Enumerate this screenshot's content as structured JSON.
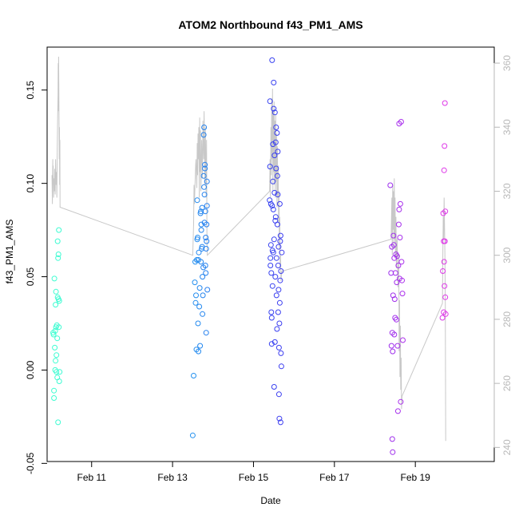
{
  "chart_data": {
    "type": "scatter",
    "title": "ATOM2 Northbound f43_PM1_AMS",
    "xlabel": "Date",
    "ylabel": "f43_PM1_AMS",
    "x_ticks": [
      {
        "label": "Feb 11",
        "day": 11
      },
      {
        "label": "Feb 13",
        "day": 13
      },
      {
        "label": "Feb 15",
        "day": 15
      },
      {
        "label": "Feb 17",
        "day": 17
      },
      {
        "label": "Feb 19",
        "day": 19
      }
    ],
    "y_ticks": [
      "-0.05",
      "0.00",
      "0.05",
      "0.10",
      "0.15"
    ],
    "y2_ticks": [
      "240",
      "260",
      "280",
      "300",
      "320",
      "340",
      "360"
    ],
    "xlim": [
      9.9,
      20.95
    ],
    "ylim": [
      -0.049,
      0.173
    ],
    "y2lim": [
      235.6,
      365.0
    ],
    "grid": false,
    "legend": "none",
    "colors": {
      "point_gradient": [
        "#40ffd0",
        "#20c8ee",
        "#2848f0",
        "#6a28f0",
        "#e238e8"
      ],
      "secondary_line": "#c8c8c8",
      "secondary_axis": "#b8b8b8"
    },
    "points": [
      [
        10.05,
        0.02
      ],
      [
        10.06,
        0.019
      ],
      [
        10.07,
        -0.011
      ],
      [
        10.07,
        -0.015
      ],
      [
        10.08,
        0.049
      ],
      [
        10.09,
        0.012
      ],
      [
        10.1,
        0.0
      ],
      [
        10.1,
        0.021
      ],
      [
        10.11,
        0.005
      ],
      [
        10.11,
        0.035
      ],
      [
        10.12,
        0.023
      ],
      [
        10.12,
        0.042
      ],
      [
        10.13,
        0.008
      ],
      [
        10.13,
        -0.001
      ],
      [
        10.14,
        0.024
      ],
      [
        10.15,
        -0.004
      ],
      [
        10.15,
        0.017
      ],
      [
        10.16,
        0.039
      ],
      [
        10.16,
        0.069
      ],
      [
        10.17,
        0.06
      ],
      [
        10.17,
        -0.028
      ],
      [
        10.18,
        0.062
      ],
      [
        10.18,
        0.038
      ],
      [
        10.19,
        0.023
      ],
      [
        10.19,
        0.075
      ],
      [
        10.2,
        -0.006
      ],
      [
        10.2,
        0.037
      ],
      [
        10.21,
        -0.001
      ],
      [
        13.5,
        -0.035
      ],
      [
        13.52,
        -0.003
      ],
      [
        13.55,
        0.047
      ],
      [
        13.56,
        0.058
      ],
      [
        13.57,
        0.036
      ],
      [
        13.58,
        0.04
      ],
      [
        13.59,
        0.011
      ],
      [
        13.6,
        0.059
      ],
      [
        13.61,
        0.07
      ],
      [
        13.61,
        0.091
      ],
      [
        13.62,
        0.071
      ],
      [
        13.63,
        0.025
      ],
      [
        13.64,
        0.01
      ],
      [
        13.64,
        0.059
      ],
      [
        13.65,
        0.063
      ],
      [
        13.66,
        0.034
      ],
      [
        13.67,
        0.044
      ],
      [
        13.68,
        0.013
      ],
      [
        13.69,
        0.084
      ],
      [
        13.7,
        0.085
      ],
      [
        13.7,
        0.058
      ],
      [
        13.71,
        0.075
      ],
      [
        13.71,
        0.078
      ],
      [
        13.72,
        0.065
      ],
      [
        13.73,
        0.066
      ],
      [
        13.73,
        0.087
      ],
      [
        13.74,
        0.05
      ],
      [
        13.74,
        0.03
      ],
      [
        13.75,
        0.04
      ],
      [
        13.76,
        0.055
      ],
      [
        13.77,
        0.104
      ],
      [
        13.77,
        0.126
      ],
      [
        13.78,
        0.13
      ],
      [
        13.78,
        0.098
      ],
      [
        13.79,
        0.094
      ],
      [
        13.79,
        0.079
      ],
      [
        13.8,
        0.11
      ],
      [
        13.8,
        0.108
      ],
      [
        13.81,
        0.056
      ],
      [
        13.81,
        0.085
      ],
      [
        13.82,
        0.071
      ],
      [
        13.82,
        0.052
      ],
      [
        13.83,
        0.02
      ],
      [
        13.83,
        0.065
      ],
      [
        13.84,
        0.069
      ],
      [
        13.84,
        0.078
      ],
      [
        13.85,
        0.088
      ],
      [
        13.85,
        0.101
      ],
      [
        13.86,
        0.043
      ],
      [
        15.4,
        0.091
      ],
      [
        15.41,
        0.109
      ],
      [
        15.41,
        0.144
      ],
      [
        15.42,
        0.056
      ],
      [
        15.42,
        0.06
      ],
      [
        15.43,
        0.089
      ],
      [
        15.43,
        0.067
      ],
      [
        15.44,
        0.031
      ],
      [
        15.44,
        0.052
      ],
      [
        15.45,
        0.028
      ],
      [
        15.45,
        0.014
      ],
      [
        15.46,
        0.088
      ],
      [
        15.46,
        0.166
      ],
      [
        15.47,
        0.045
      ],
      [
        15.47,
        0.064
      ],
      [
        15.48,
        0.101
      ],
      [
        15.48,
        0.121
      ],
      [
        15.49,
        0.086
      ],
      [
        15.49,
        0.063
      ],
      [
        15.5,
        0.14
      ],
      [
        15.5,
        0.154
      ],
      [
        15.51,
        -0.009
      ],
      [
        15.51,
        0.07
      ],
      [
        15.52,
        0.115
      ],
      [
        15.52,
        0.095
      ],
      [
        15.53,
        0.138
      ],
      [
        15.53,
        0.015
      ],
      [
        15.54,
        0.05
      ],
      [
        15.54,
        0.08
      ],
      [
        15.55,
        0.122
      ],
      [
        15.55,
        0.082
      ],
      [
        15.56,
        0.108
      ],
      [
        15.56,
        0.13
      ],
      [
        15.57,
        0.06
      ],
      [
        15.57,
        0.04
      ],
      [
        15.58,
        0.022
      ],
      [
        15.58,
        0.127
      ],
      [
        15.59,
        0.104
      ],
      [
        15.59,
        0.078
      ],
      [
        15.6,
        0.094
      ],
      [
        15.6,
        0.117
      ],
      [
        15.61,
        0.056
      ],
      [
        15.61,
        0.031
      ],
      [
        15.62,
        0.066
      ],
      [
        15.62,
        0.043
      ],
      [
        15.63,
        0.012
      ],
      [
        15.63,
        -0.013
      ],
      [
        15.64,
        -0.026
      ],
      [
        15.64,
        0.025
      ],
      [
        15.65,
        0.036
      ],
      [
        15.65,
        0.089
      ],
      [
        15.66,
        0.069
      ],
      [
        15.66,
        0.048
      ],
      [
        15.67,
        -0.028
      ],
      [
        15.67,
        0.072
      ],
      [
        15.68,
        0.053
      ],
      [
        15.68,
        0.009
      ],
      [
        15.69,
        0.002
      ],
      [
        15.7,
        0.063
      ],
      [
        18.38,
        0.099
      ],
      [
        18.4,
        0.052
      ],
      [
        18.41,
        0.013
      ],
      [
        18.42,
        0.066
      ],
      [
        18.43,
        0.02
      ],
      [
        18.43,
        -0.037
      ],
      [
        18.44,
        -0.044
      ],
      [
        18.44,
        0.01
      ],
      [
        18.45,
        0.04
      ],
      [
        18.46,
        0.072
      ],
      [
        18.47,
        0.067
      ],
      [
        18.48,
        0.019
      ],
      [
        18.48,
        0.06
      ],
      [
        18.49,
        0.038
      ],
      [
        18.5,
        0.028
      ],
      [
        18.51,
        0.052
      ],
      [
        18.52,
        0.062
      ],
      [
        18.53,
        0.027
      ],
      [
        18.54,
        0.047
      ],
      [
        18.55,
        0.061
      ],
      [
        18.56,
        0.013
      ],
      [
        18.57,
        -0.022
      ],
      [
        18.58,
        0.056
      ],
      [
        18.59,
        0.078
      ],
      [
        18.6,
        0.086
      ],
      [
        18.6,
        0.132
      ],
      [
        18.61,
        0.049
      ],
      [
        18.62,
        0.071
      ],
      [
        18.63,
        0.089
      ],
      [
        18.64,
        -0.017
      ],
      [
        18.65,
        0.133
      ],
      [
        18.66,
        0.058
      ],
      [
        18.67,
        0.048
      ],
      [
        18.68,
        0.041
      ],
      [
        18.69,
        0.016
      ],
      [
        19.67,
        0.028
      ],
      [
        19.68,
        0.053
      ],
      [
        19.69,
        0.084
      ],
      [
        19.7,
        0.069
      ],
      [
        19.7,
        0.031
      ],
      [
        19.71,
        0.107
      ],
      [
        19.71,
        0.058
      ],
      [
        19.72,
        0.12
      ],
      [
        19.72,
        0.045
      ],
      [
        19.73,
        0.143
      ],
      [
        19.73,
        0.069
      ],
      [
        19.74,
        0.085
      ],
      [
        19.74,
        0.039
      ],
      [
        19.75,
        0.03
      ]
    ],
    "secondary_line": [
      [
        10.02,
        325
      ],
      [
        10.03,
        316
      ],
      [
        10.04,
        330
      ],
      [
        10.045,
        322
      ],
      [
        10.05,
        328
      ],
      [
        10.06,
        318
      ],
      [
        10.07,
        324
      ],
      [
        10.08,
        320
      ],
      [
        10.09,
        327
      ],
      [
        10.1,
        319
      ],
      [
        10.11,
        330
      ],
      [
        10.12,
        322
      ],
      [
        10.13,
        326
      ],
      [
        10.14,
        318
      ],
      [
        10.15,
        333
      ],
      [
        10.16,
        343
      ],
      [
        10.17,
        350
      ],
      [
        10.175,
        360
      ],
      [
        10.18,
        345
      ],
      [
        10.185,
        362
      ],
      [
        10.19,
        352
      ],
      [
        10.2,
        330
      ],
      [
        10.205,
        340
      ],
      [
        10.21,
        322
      ],
      [
        10.215,
        336
      ],
      [
        10.22,
        315
      ],
      [
        13.5,
        300
      ],
      [
        13.52,
        310
      ],
      [
        13.53,
        322
      ],
      [
        13.54,
        316
      ],
      [
        13.55,
        320
      ],
      [
        13.57,
        328
      ],
      [
        13.58,
        330
      ],
      [
        13.6,
        321
      ],
      [
        13.61,
        335
      ],
      [
        13.62,
        325
      ],
      [
        13.63,
        338
      ],
      [
        13.64,
        330
      ],
      [
        13.65,
        340
      ],
      [
        13.66,
        318
      ],
      [
        13.67,
        343
      ],
      [
        13.68,
        326
      ],
      [
        13.69,
        339
      ],
      [
        13.7,
        320
      ],
      [
        13.72,
        336
      ],
      [
        13.74,
        324
      ],
      [
        13.75,
        342
      ],
      [
        13.77,
        330
      ],
      [
        13.78,
        345
      ],
      [
        13.8,
        322
      ],
      [
        13.81,
        340
      ],
      [
        13.83,
        318
      ],
      [
        13.84,
        336
      ],
      [
        13.85,
        304
      ],
      [
        13.86,
        300
      ],
      [
        15.4,
        320
      ],
      [
        15.41,
        330
      ],
      [
        15.42,
        318
      ],
      [
        15.43,
        340
      ],
      [
        15.44,
        325
      ],
      [
        15.45,
        349
      ],
      [
        15.46,
        330
      ],
      [
        15.47,
        352
      ],
      [
        15.48,
        320
      ],
      [
        15.49,
        345
      ],
      [
        15.5,
        326
      ],
      [
        15.51,
        348
      ],
      [
        15.52,
        322
      ],
      [
        15.53,
        342
      ],
      [
        15.54,
        318
      ],
      [
        15.55,
        344
      ],
      [
        15.56,
        323
      ],
      [
        15.57,
        338
      ],
      [
        15.58,
        315
      ],
      [
        15.59,
        334
      ],
      [
        15.6,
        318
      ],
      [
        15.61,
        328
      ],
      [
        15.62,
        310
      ],
      [
        15.63,
        320
      ],
      [
        15.64,
        302
      ],
      [
        15.65,
        312
      ],
      [
        15.66,
        296
      ],
      [
        15.67,
        300
      ],
      [
        15.68,
        292
      ],
      [
        15.7,
        295
      ],
      [
        18.4,
        305
      ],
      [
        18.42,
        318
      ],
      [
        18.43,
        300
      ],
      [
        18.44,
        322
      ],
      [
        18.45,
        308
      ],
      [
        18.46,
        320
      ],
      [
        18.47,
        302
      ],
      [
        18.48,
        324
      ],
      [
        18.49,
        305
      ],
      [
        18.5,
        318
      ],
      [
        18.51,
        300
      ],
      [
        18.52,
        312
      ],
      [
        18.53,
        296
      ],
      [
        18.55,
        305
      ],
      [
        18.57,
        290
      ],
      [
        18.59,
        300
      ],
      [
        18.6,
        270
      ],
      [
        18.61,
        286
      ],
      [
        18.62,
        262
      ],
      [
        18.63,
        278
      ],
      [
        18.64,
        258
      ],
      [
        18.65,
        268
      ],
      [
        18.66,
        252
      ],
      [
        18.67,
        256
      ],
      [
        19.67,
        285
      ],
      [
        19.68,
        300
      ],
      [
        19.69,
        312
      ],
      [
        19.7,
        305
      ],
      [
        19.71,
        318
      ],
      [
        19.72,
        310
      ],
      [
        19.73,
        300
      ],
      [
        19.74,
        285
      ],
      [
        19.75,
        242
      ]
    ]
  }
}
